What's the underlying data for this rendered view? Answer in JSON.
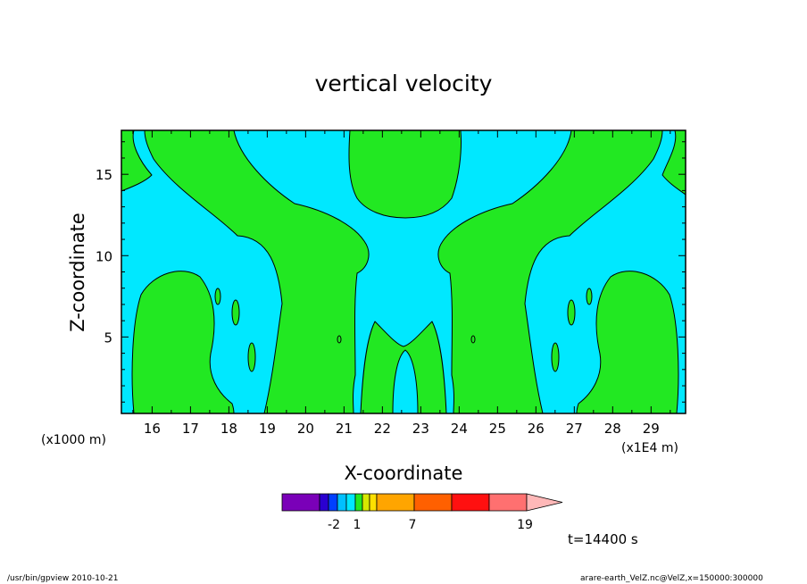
{
  "chart_data": {
    "type": "heatmap",
    "title": "vertical velocity",
    "xlabel": "X-coordinate",
    "ylabel": "Z-coordinate",
    "x_unit_note": "(x1E4 m)",
    "y_unit_note": "(x1000 m)",
    "xlim": [
      15.2,
      29.9
    ],
    "ylim": [
      0.3,
      17.7
    ],
    "x_ticks": [
      16,
      17,
      18,
      19,
      20,
      21,
      22,
      23,
      24,
      25,
      26,
      27,
      28,
      29
    ],
    "y_ticks": [
      5,
      10,
      15
    ],
    "time_label": "t=14400 s",
    "colors": {
      "negative_fill": "#00e8ff",
      "positive_fill": "#22e822",
      "contour_line": "#000000"
    },
    "colorbar": {
      "colors": [
        "#7a00b8",
        "#2a00d0",
        "#0040ff",
        "#00c0ff",
        "#00e8ff",
        "#22e822",
        "#d8e800",
        "#ffe000",
        "#ffa500",
        "#ff6000",
        "#ff1010",
        "#ff7070",
        "#ffb8b8"
      ],
      "tick_labels": [
        "-2",
        "1",
        "7",
        "19"
      ]
    }
  },
  "footer": {
    "program": "/usr/bin/gpview   2010-10-21",
    "source": "arare-earth_VelZ.nc@VelZ,x=150000:300000"
  }
}
